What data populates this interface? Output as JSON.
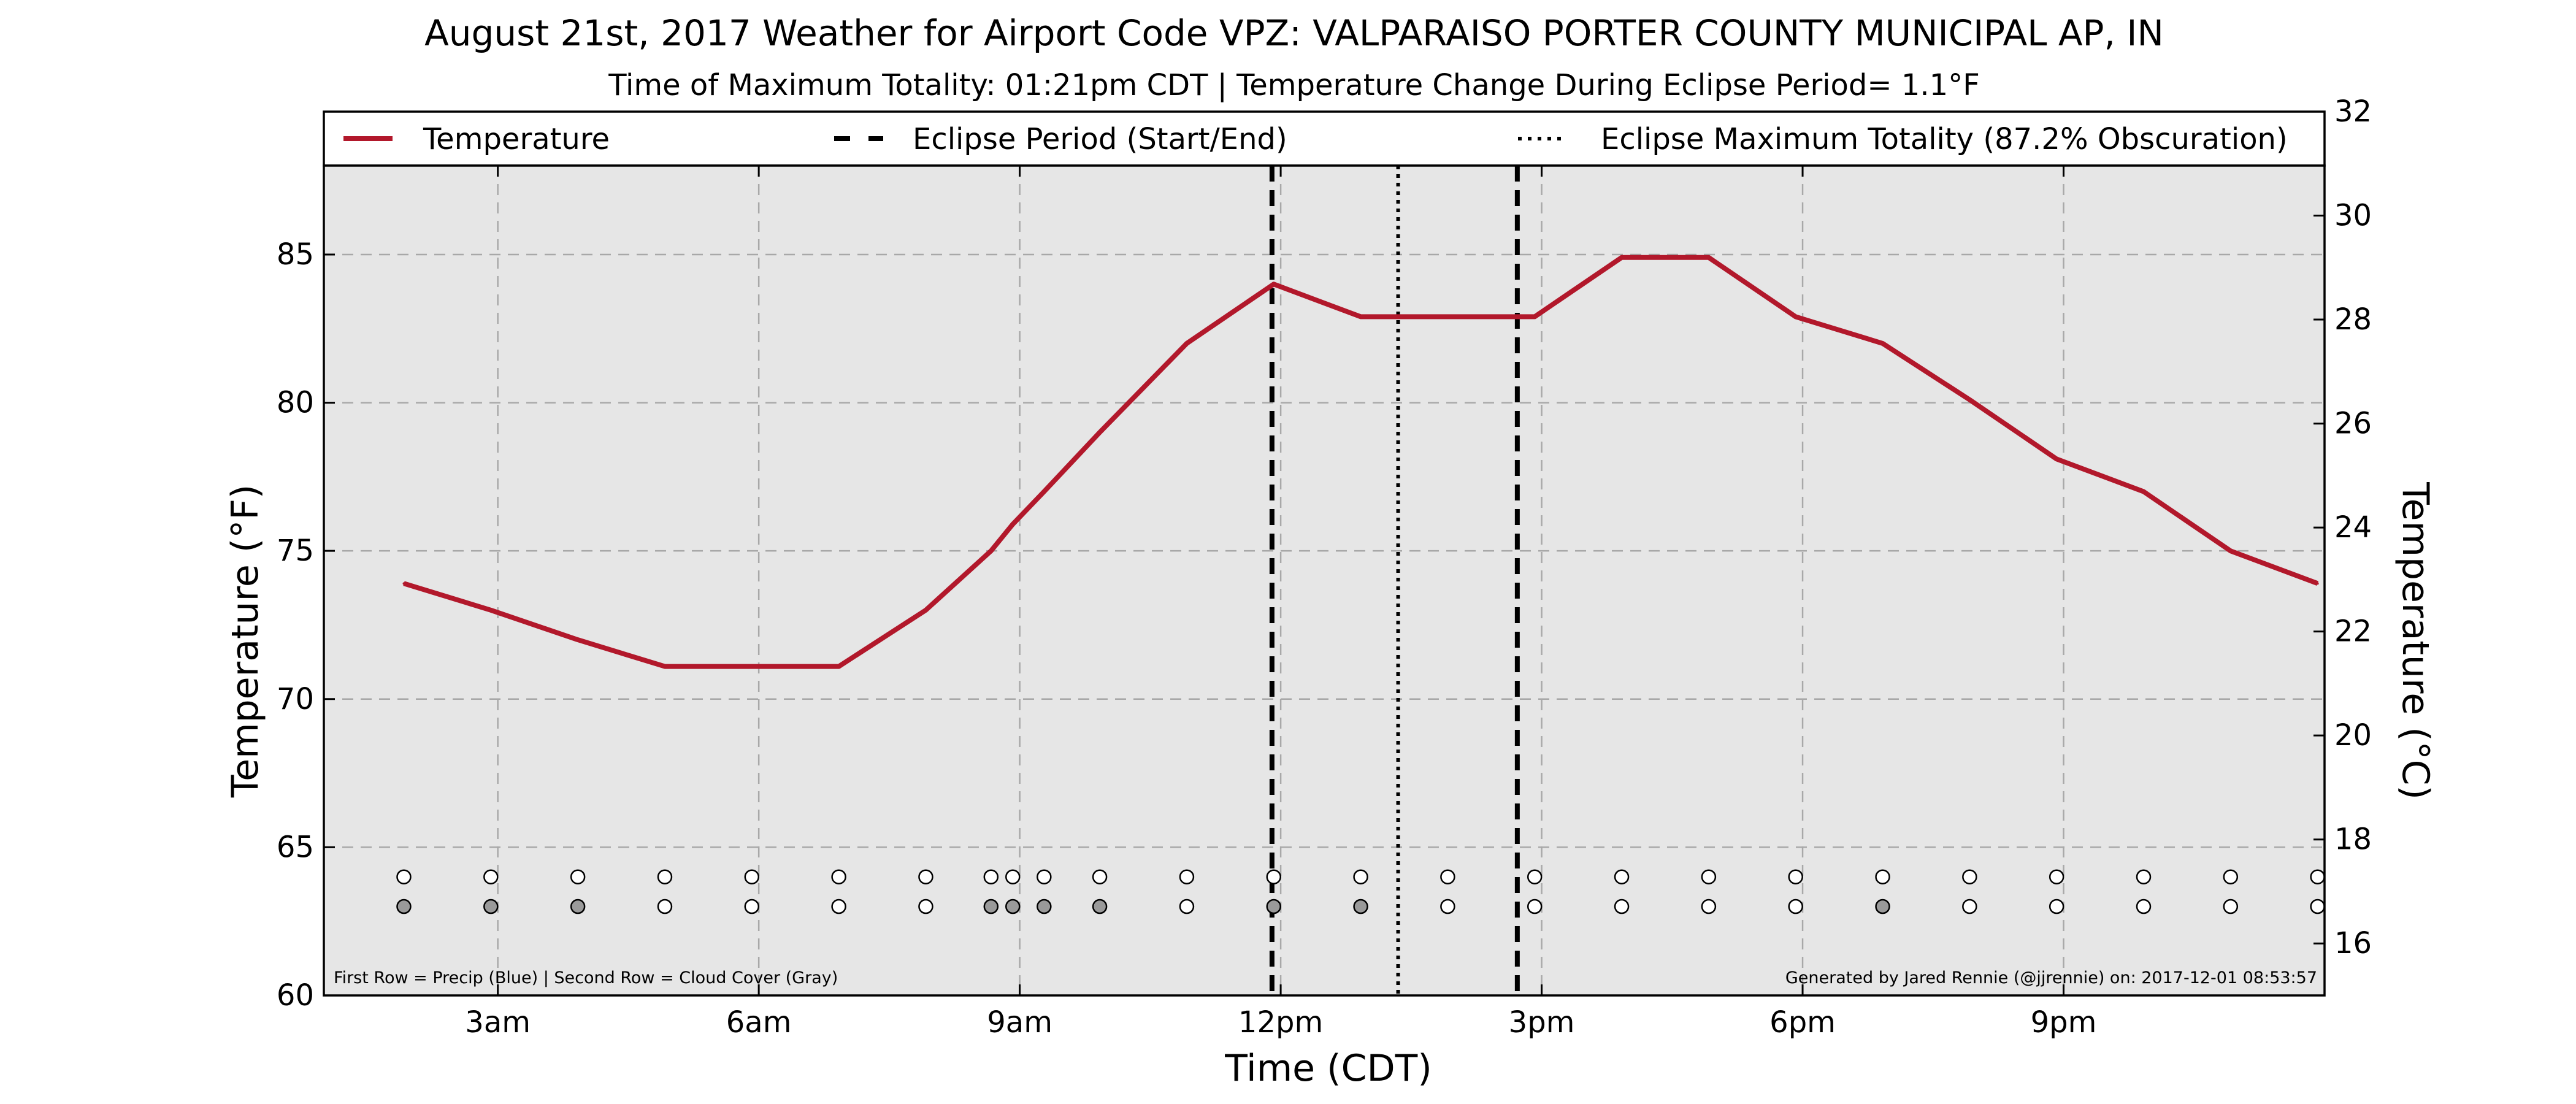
{
  "chart_data": {
    "type": "line",
    "title": "August 21st, 2017 Weather for Airport Code VPZ: VALPARAISO PORTER COUNTY MUNICIPAL AP, IN",
    "subtitle": "Time of Maximum Totality: 01:21pm CDT | Temperature Change During Eclipse Period= 1.1°F",
    "xlabel": "Time (CDT)",
    "ylabel": "Temperature (°F)",
    "ylabel_right": "Temperature (°C)",
    "xlim": [
      1.0,
      24.0
    ],
    "ylim": [
      60,
      88
    ],
    "ylim_right": [
      15.0,
      32.0
    ],
    "x_tick_values": [
      3,
      6,
      9,
      12,
      15,
      18,
      21
    ],
    "x_tick_labels": [
      "3am",
      "6am",
      "9am",
      "12pm",
      "3pm",
      "6pm",
      "9pm"
    ],
    "y_ticks": [
      60,
      65,
      70,
      75,
      80,
      85
    ],
    "y_ticks_right": [
      16,
      18,
      20,
      22,
      24,
      26,
      28,
      30,
      32
    ],
    "grid": true,
    "legend": {
      "placement": "top",
      "entries": [
        {
          "label": "Temperature",
          "style": "solid",
          "color": "#b2182b"
        },
        {
          "label": "Eclipse Period (Start/End)",
          "style": "dashed",
          "color": "#000000"
        },
        {
          "label": "Eclipse Maximum Totality (87.2% Obscuration)",
          "style": "dotted",
          "color": "#000000"
        }
      ]
    },
    "series": [
      {
        "name": "Temperature",
        "color": "#b2182b",
        "x": [
          1.92,
          2.92,
          3.92,
          4.92,
          5.92,
          6.92,
          7.92,
          8.67,
          8.92,
          9.28,
          9.92,
          10.92,
          11.92,
          12.92,
          13.92,
          14.92,
          15.92,
          16.92,
          17.92,
          18.92,
          19.92,
          20.92,
          21.92,
          22.92,
          23.92
        ],
        "y": [
          73.9,
          73.0,
          72.0,
          71.1,
          71.1,
          71.1,
          73.0,
          75.0,
          75.9,
          77.0,
          79.0,
          82.0,
          84.0,
          82.9,
          82.9,
          82.9,
          84.9,
          84.9,
          82.9,
          82.0,
          80.1,
          78.1,
          77.0,
          75.0,
          73.9
        ]
      }
    ],
    "eclipse_start": 11.9,
    "eclipse_max": 13.35,
    "eclipse_end": 14.72,
    "markers": {
      "x": [
        1.92,
        2.92,
        3.92,
        4.92,
        5.92,
        6.92,
        7.92,
        8.67,
        8.92,
        9.28,
        9.92,
        10.92,
        11.92,
        12.92,
        13.92,
        14.92,
        15.92,
        16.92,
        17.92,
        18.92,
        19.92,
        20.92,
        21.92,
        22.92,
        23.92
      ],
      "precip_row_y": 64.0,
      "cloud_row_y": 63.0,
      "precip": [
        0,
        0,
        0,
        0,
        0,
        0,
        0,
        0,
        0,
        0,
        0,
        0,
        0,
        0,
        0,
        0,
        0,
        0,
        0,
        0,
        0,
        0,
        0,
        0,
        0
      ],
      "cloud": [
        1,
        1,
        1,
        0,
        0,
        0,
        0,
        1,
        1,
        1,
        1,
        0,
        1,
        1,
        0,
        0,
        0,
        0,
        0,
        1,
        0,
        0,
        0,
        0,
        0
      ],
      "filled_color": "#9a9a9a",
      "empty_color": "#ffffff"
    },
    "plot_bg": "#e6e6e6",
    "footnote_left": "First Row = Precip (Blue) | Second Row = Cloud Cover (Gray)",
    "footnote_right": "Generated by Jared Rennie (@jjrennie) on: 2017-12-01 08:53:57"
  }
}
